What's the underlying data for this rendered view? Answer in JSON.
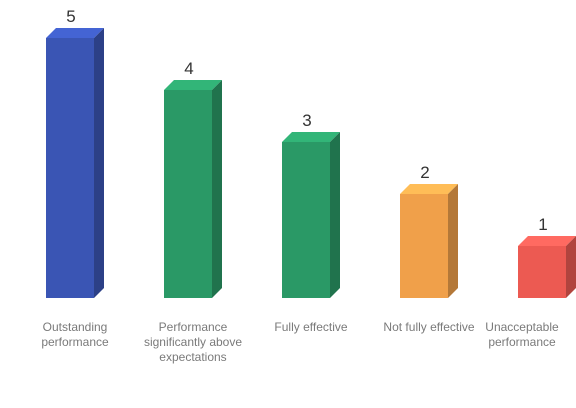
{
  "chart_data": {
    "type": "bar",
    "categories": [
      "Outstanding performance",
      "Performance significantly above expectations",
      "Fully effective",
      "Not fully effective",
      "Unacceptable performance"
    ],
    "values": [
      5,
      4,
      3,
      2,
      1
    ],
    "data_labels": [
      "5",
      "4",
      "3",
      "2",
      "1"
    ],
    "colors": [
      "#3a55b4",
      "#2a9966",
      "#2a9966",
      "#f0a04a",
      "#ec5a52"
    ],
    "ylim": [
      0,
      5
    ],
    "grid": false,
    "legend": "none",
    "style": "3d-box"
  }
}
